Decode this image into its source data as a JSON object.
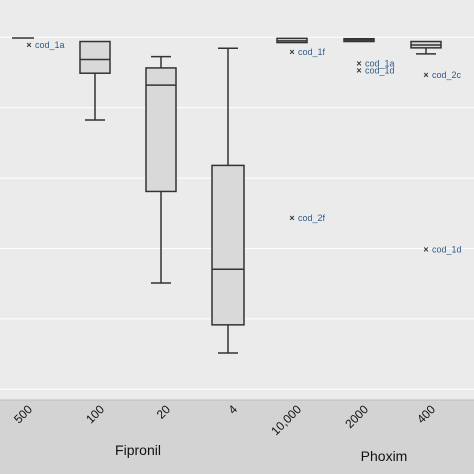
{
  "chart_data": {
    "type": "box",
    "title": "",
    "xlabel": "",
    "ylabel": "",
    "ylim": [
      0,
      1.0
    ],
    "grid": true,
    "colors": {
      "panel": "#ebebeb",
      "grid": "#ffffff",
      "box_fill": "#d9d9d9",
      "box_stroke": "#333333",
      "strip": "#d3d3d3",
      "outlier_label": "#2f5b87"
    },
    "groups": [
      {
        "label": "Fipronil",
        "categories": [
          "500",
          "100",
          "20",
          "4"
        ]
      },
      {
        "label": "Phoxim",
        "categories": [
          "10,000",
          "2000",
          "400"
        ]
      }
    ],
    "boxes": [
      {
        "category": "500",
        "min": 0.998,
        "q1": 0.998,
        "median": 0.998,
        "q3": 0.998,
        "max": 0.998
      },
      {
        "category": "100",
        "min": 0.765,
        "q1": 0.898,
        "median": 0.937,
        "q3": 0.988,
        "max": 0.988
      },
      {
        "category": "20",
        "min": 0.302,
        "q1": 0.562,
        "median": 0.864,
        "q3": 0.913,
        "max": 0.945
      },
      {
        "category": "4",
        "min": 0.103,
        "q1": 0.183,
        "median": 0.341,
        "q3": 0.636,
        "max": 0.969
      },
      {
        "category": "10,000",
        "min": 0.985,
        "q1": 0.985,
        "median": 0.99,
        "q3": 0.997,
        "max": 0.997
      },
      {
        "category": "2000",
        "min": 0.988,
        "q1": 0.988,
        "median": 0.992,
        "q3": 0.996,
        "max": 0.996
      },
      {
        "category": "400",
        "min": 0.953,
        "q1": 0.97,
        "median": 0.978,
        "q3": 0.988,
        "max": 0.988
      }
    ],
    "outliers": [
      {
        "category": "500",
        "y": 0.978,
        "label": "cod_1a"
      },
      {
        "category": "10,000",
        "y": 0.958,
        "label": "cod_1f"
      },
      {
        "category": "10,000",
        "y": 0.487,
        "label": "cod_2f"
      },
      {
        "category": "2000",
        "y": 0.925,
        "label": "cod_1a"
      },
      {
        "category": "2000",
        "y": 0.906,
        "label": "cod_1d"
      },
      {
        "category": "400",
        "y": 0.893,
        "label": "cod_2c"
      },
      {
        "category": "400",
        "y": 0.397,
        "label": "cod_1d"
      }
    ]
  }
}
